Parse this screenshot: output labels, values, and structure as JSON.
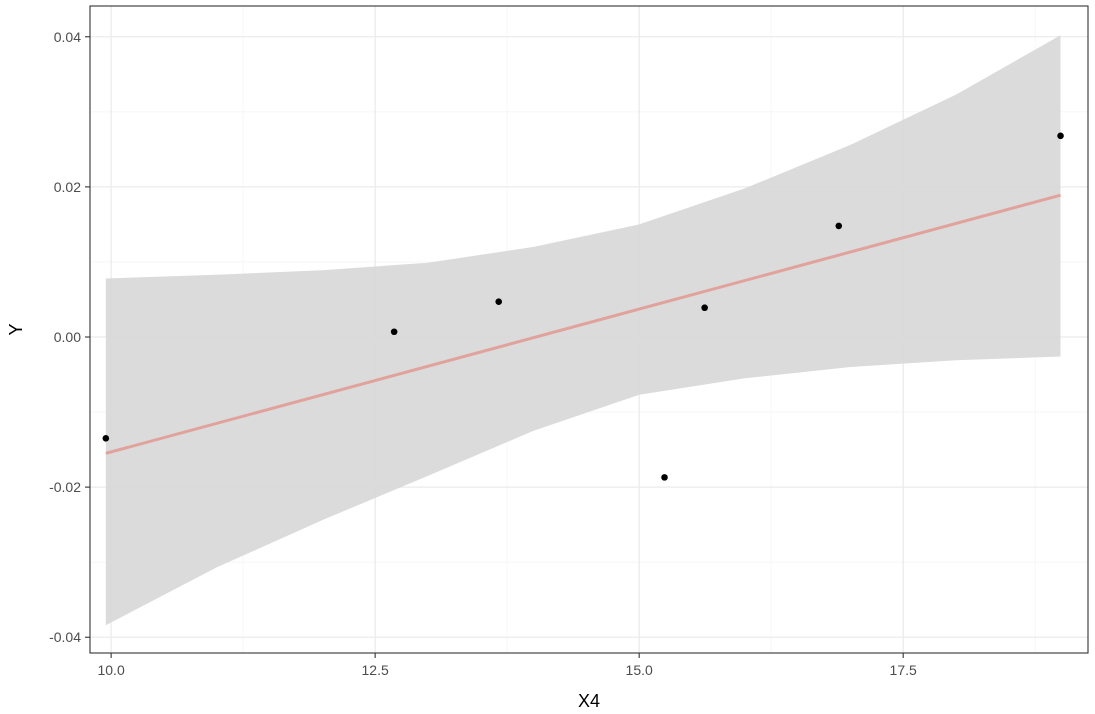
{
  "chart_data": {
    "type": "scatter",
    "xlabel": "X4",
    "ylabel": "Y",
    "xlim": [
      9.8,
      19.25
    ],
    "ylim": [
      -0.0421,
      0.0441
    ],
    "grid": true,
    "x_ticks": [
      10.0,
      12.5,
      15.0,
      17.5
    ],
    "x_tick_labels": [
      "10.0",
      "12.5",
      "15.0",
      "17.5"
    ],
    "x_minor_ticks": [
      11.25,
      13.75,
      16.25,
      18.75
    ],
    "y_ticks": [
      -0.04,
      -0.02,
      0.0,
      0.02,
      0.04
    ],
    "y_tick_labels": [
      "-0.04",
      "-0.02",
      "0.00",
      "0.02",
      "0.04"
    ],
    "y_minor_ticks": [
      -0.03,
      -0.01,
      0.01,
      0.03
    ],
    "points": [
      {
        "x": 9.95,
        "y": -0.0135
      },
      {
        "x": 12.68,
        "y": 0.0007
      },
      {
        "x": 13.67,
        "y": 0.0047
      },
      {
        "x": 15.24,
        "y": -0.0187
      },
      {
        "x": 15.62,
        "y": 0.0039
      },
      {
        "x": 16.89,
        "y": 0.0148
      },
      {
        "x": 18.99,
        "y": 0.0268
      }
    ],
    "fit_line": {
      "x": [
        9.95,
        18.99
      ],
      "y": [
        -0.0155,
        0.0189
      ]
    },
    "confidence_band": {
      "x": [
        9.95,
        11.0,
        12.0,
        13.0,
        14.0,
        15.0,
        16.0,
        17.0,
        18.0,
        18.99
      ],
      "upper": [
        0.0078,
        0.0083,
        0.0089,
        0.0099,
        0.012,
        0.015,
        0.0198,
        0.0256,
        0.0323,
        0.0402
      ],
      "lower": [
        -0.0384,
        -0.0307,
        -0.0244,
        -0.0185,
        -0.0125,
        -0.0077,
        -0.0055,
        -0.004,
        -0.0031,
        -0.0026
      ]
    },
    "colors": {
      "point": "#000000",
      "fit_line": "#e1a29c",
      "band": "#d9d9d9",
      "grid_major": "#ebebeb",
      "grid_minor": "#f5f5f5",
      "panel_border": "#333333"
    }
  }
}
